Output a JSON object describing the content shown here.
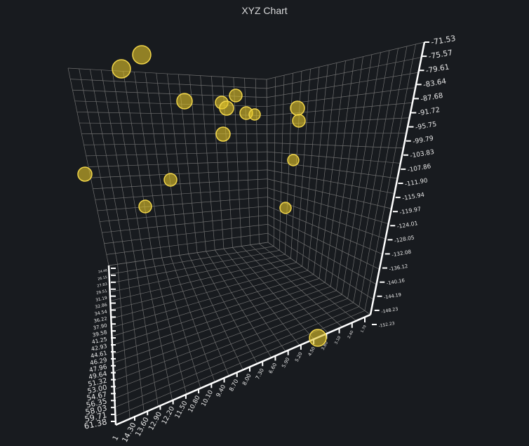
{
  "panel": {
    "title": "XYZ Chart"
  },
  "colors": {
    "background": "#181b1f",
    "grid": "#6e6e6e",
    "axis": "#ffffff",
    "point_fill": "#e3c52a",
    "point_stroke": "#f2d649"
  },
  "chart_data": {
    "type": "scatter",
    "title": "XYZ Chart",
    "dimensions": 3,
    "grid": true,
    "x_axis": {
      "ticks": [
        "14.30",
        "13.60",
        "12.90",
        "12.20",
        "11.50",
        "10.80",
        "10.10",
        "9.40",
        "8.70",
        "8.00",
        "7.30",
        "6.60",
        "5.90",
        "5.20",
        "4.50",
        "3.80",
        "3.10",
        "2.40",
        "1.70"
      ],
      "end_label": "1"
    },
    "y_axis": {
      "ticks": [
        "61.38",
        "59.71",
        "58.03",
        "56.35",
        "54.67",
        "53.00",
        "51.32",
        "49.64",
        "47.96",
        "46.29",
        "44.61",
        "42.93",
        "41.25",
        "39.58",
        "37.90",
        "36.22",
        "34.54",
        "32.86",
        "31.19",
        "29.51",
        "27.83",
        "26.15",
        "24.48"
      ]
    },
    "z_axis": {
      "ticks": [
        "-71.53",
        "-75.57",
        "-79.61",
        "-83.64",
        "-87.68",
        "-91.72",
        "-95.75",
        "-99.79",
        "-103.83",
        "-107.86",
        "-111.90",
        "-115.94",
        "-119.97",
        "-124.01",
        "-128.05",
        "-132.08",
        "-136.12",
        "-140.16",
        "-144.19",
        "-148.23",
        "-152.23"
      ]
    },
    "points": [
      {
        "x": 2.4,
        "y": 25.0,
        "z": -78.0,
        "size": 13
      },
      {
        "x": 2.8,
        "y": 28.0,
        "z": -76.0,
        "size": 13
      },
      {
        "x": 4.2,
        "y": 31.0,
        "z": -83.0,
        "size": 11
      },
      {
        "x": 5.4,
        "y": 34.0,
        "z": -86.0,
        "size": 9
      },
      {
        "x": 5.6,
        "y": 35.0,
        "z": -84.0,
        "size": 9
      },
      {
        "x": 5.8,
        "y": 33.0,
        "z": -86.0,
        "size": 10
      },
      {
        "x": 6.6,
        "y": 36.0,
        "z": -87.0,
        "size": 9
      },
      {
        "x": 7.0,
        "y": 37.0,
        "z": -88.0,
        "size": 8
      },
      {
        "x": 5.2,
        "y": 31.5,
        "z": -92.0,
        "size": 10
      },
      {
        "x": 9.4,
        "y": 44.0,
        "z": -86.0,
        "size": 10
      },
      {
        "x": 9.6,
        "y": 45.0,
        "z": -88.0,
        "size": 9
      },
      {
        "x": 2.0,
        "y": 20.0,
        "z": -97.0,
        "size": 10
      },
      {
        "x": 4.4,
        "y": 28.0,
        "z": -99.0,
        "size": 9
      },
      {
        "x": 3.5,
        "y": 24.0,
        "z": -104.0,
        "size": 9
      },
      {
        "x": 9.8,
        "y": 46.0,
        "z": -100.0,
        "size": 8
      },
      {
        "x": 9.5,
        "y": 45.0,
        "z": -106.0,
        "size": 8
      },
      {
        "x": 6.2,
        "y": 60.5,
        "z": -150.0,
        "size": 12
      }
    ]
  }
}
